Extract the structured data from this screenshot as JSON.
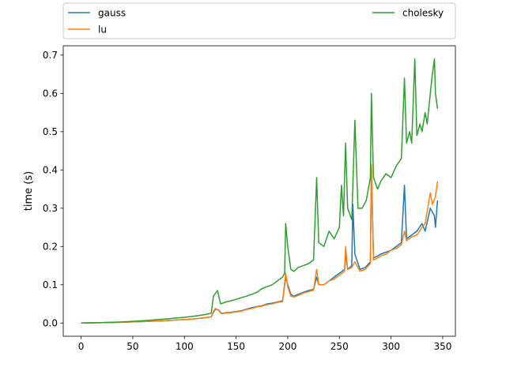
{
  "chart_data": {
    "type": "line",
    "title": "",
    "xlabel": "",
    "ylabel": "time (s)",
    "xlim": [
      -17.3,
      362.3
    ],
    "ylim": [
      -0.0345,
      0.7245
    ],
    "x_ticks": [
      0,
      50,
      100,
      150,
      200,
      250,
      300,
      350
    ],
    "y_ticks": [
      0.0,
      0.1,
      0.2,
      0.3,
      0.4,
      0.5,
      0.6,
      0.7
    ],
    "x_tick_labels": [
      "0",
      "50",
      "100",
      "150",
      "200",
      "250",
      "300",
      "350"
    ],
    "y_tick_labels": [
      "0.0",
      "0.1",
      "0.2",
      "0.3",
      "0.4",
      "0.5",
      "0.6",
      "0.7"
    ],
    "grid": false,
    "legend_position": "above plot, two columns",
    "series": [
      {
        "name": "gauss",
        "color": "#1f77b4",
        "points": [
          [
            0,
            0.0
          ],
          [
            20,
            0.001
          ],
          [
            40,
            0.002
          ],
          [
            60,
            0.004
          ],
          [
            80,
            0.006
          ],
          [
            100,
            0.009
          ],
          [
            110,
            0.011
          ],
          [
            120,
            0.014
          ],
          [
            126,
            0.016
          ],
          [
            128,
            0.028
          ],
          [
            130,
            0.036
          ],
          [
            133,
            0.034
          ],
          [
            136,
            0.025
          ],
          [
            140,
            0.027
          ],
          [
            145,
            0.028
          ],
          [
            150,
            0.03
          ],
          [
            155,
            0.032
          ],
          [
            160,
            0.036
          ],
          [
            165,
            0.04
          ],
          [
            170,
            0.043
          ],
          [
            175,
            0.045
          ],
          [
            180,
            0.05
          ],
          [
            185,
            0.052
          ],
          [
            190,
            0.055
          ],
          [
            195,
            0.058
          ],
          [
            198,
            0.12
          ],
          [
            200,
            0.1
          ],
          [
            203,
            0.075
          ],
          [
            206,
            0.07
          ],
          [
            210,
            0.075
          ],
          [
            215,
            0.08
          ],
          [
            220,
            0.085
          ],
          [
            225,
            0.088
          ],
          [
            228,
            0.12
          ],
          [
            230,
            0.1
          ],
          [
            235,
            0.1
          ],
          [
            240,
            0.11
          ],
          [
            245,
            0.12
          ],
          [
            250,
            0.13
          ],
          [
            255,
            0.14
          ],
          [
            256,
            0.18
          ],
          [
            258,
            0.14
          ],
          [
            262,
            0.15
          ],
          [
            263,
            0.31
          ],
          [
            265,
            0.18
          ],
          [
            270,
            0.14
          ],
          [
            275,
            0.145
          ],
          [
            280,
            0.16
          ],
          [
            281,
            0.41
          ],
          [
            283,
            0.17
          ],
          [
            287,
            0.175
          ],
          [
            290,
            0.18
          ],
          [
            295,
            0.185
          ],
          [
            300,
            0.19
          ],
          [
            305,
            0.2
          ],
          [
            310,
            0.21
          ],
          [
            313,
            0.36
          ],
          [
            315,
            0.22
          ],
          [
            320,
            0.23
          ],
          [
            325,
            0.24
          ],
          [
            330,
            0.26
          ],
          [
            333,
            0.24
          ],
          [
            338,
            0.3
          ],
          [
            342,
            0.28
          ],
          [
            343,
            0.25
          ],
          [
            345,
            0.32
          ]
        ]
      },
      {
        "name": "lu",
        "color": "#ff7f0e",
        "points": [
          [
            0,
            0.0
          ],
          [
            20,
            0.001
          ],
          [
            40,
            0.002
          ],
          [
            60,
            0.004
          ],
          [
            80,
            0.006
          ],
          [
            100,
            0.009
          ],
          [
            110,
            0.011
          ],
          [
            120,
            0.014
          ],
          [
            126,
            0.016
          ],
          [
            128,
            0.03
          ],
          [
            130,
            0.038
          ],
          [
            133,
            0.033
          ],
          [
            136,
            0.024
          ],
          [
            140,
            0.026
          ],
          [
            145,
            0.027
          ],
          [
            150,
            0.029
          ],
          [
            155,
            0.031
          ],
          [
            160,
            0.035
          ],
          [
            165,
            0.038
          ],
          [
            170,
            0.042
          ],
          [
            175,
            0.044
          ],
          [
            180,
            0.048
          ],
          [
            185,
            0.05
          ],
          [
            190,
            0.054
          ],
          [
            195,
            0.056
          ],
          [
            198,
            0.13
          ],
          [
            200,
            0.095
          ],
          [
            203,
            0.07
          ],
          [
            206,
            0.068
          ],
          [
            210,
            0.072
          ],
          [
            215,
            0.078
          ],
          [
            220,
            0.082
          ],
          [
            225,
            0.086
          ],
          [
            228,
            0.14
          ],
          [
            230,
            0.1
          ],
          [
            235,
            0.1
          ],
          [
            240,
            0.11
          ],
          [
            245,
            0.115
          ],
          [
            250,
            0.125
          ],
          [
            255,
            0.135
          ],
          [
            256,
            0.2
          ],
          [
            258,
            0.14
          ],
          [
            262,
            0.145
          ],
          [
            265,
            0.16
          ],
          [
            270,
            0.135
          ],
          [
            275,
            0.14
          ],
          [
            280,
            0.155
          ],
          [
            281,
            0.415
          ],
          [
            283,
            0.165
          ],
          [
            287,
            0.17
          ],
          [
            290,
            0.175
          ],
          [
            295,
            0.18
          ],
          [
            300,
            0.19
          ],
          [
            305,
            0.195
          ],
          [
            310,
            0.205
          ],
          [
            313,
            0.24
          ],
          [
            315,
            0.215
          ],
          [
            320,
            0.225
          ],
          [
            325,
            0.23
          ],
          [
            330,
            0.25
          ],
          [
            333,
            0.26
          ],
          [
            338,
            0.34
          ],
          [
            340,
            0.31
          ],
          [
            343,
            0.33
          ],
          [
            345,
            0.37
          ]
        ]
      },
      {
        "name": "cholesky",
        "color": "#2ca02c",
        "points": [
          [
            0,
            0.0
          ],
          [
            20,
            0.001
          ],
          [
            40,
            0.003
          ],
          [
            60,
            0.006
          ],
          [
            80,
            0.01
          ],
          [
            100,
            0.015
          ],
          [
            110,
            0.018
          ],
          [
            120,
            0.022
          ],
          [
            126,
            0.026
          ],
          [
            128,
            0.07
          ],
          [
            132,
            0.085
          ],
          [
            135,
            0.05
          ],
          [
            140,
            0.055
          ],
          [
            145,
            0.058
          ],
          [
            150,
            0.062
          ],
          [
            155,
            0.066
          ],
          [
            160,
            0.07
          ],
          [
            165,
            0.075
          ],
          [
            170,
            0.08
          ],
          [
            175,
            0.09
          ],
          [
            180,
            0.095
          ],
          [
            185,
            0.1
          ],
          [
            190,
            0.11
          ],
          [
            195,
            0.12
          ],
          [
            197,
            0.13
          ],
          [
            198,
            0.26
          ],
          [
            200,
            0.2
          ],
          [
            203,
            0.14
          ],
          [
            206,
            0.135
          ],
          [
            210,
            0.145
          ],
          [
            215,
            0.15
          ],
          [
            220,
            0.155
          ],
          [
            225,
            0.165
          ],
          [
            228,
            0.38
          ],
          [
            230,
            0.21
          ],
          [
            235,
            0.2
          ],
          [
            240,
            0.24
          ],
          [
            245,
            0.22
          ],
          [
            250,
            0.25
          ],
          [
            252,
            0.36
          ],
          [
            254,
            0.28
          ],
          [
            256,
            0.47
          ],
          [
            258,
            0.3
          ],
          [
            262,
            0.27
          ],
          [
            265,
            0.53
          ],
          [
            268,
            0.3
          ],
          [
            272,
            0.3
          ],
          [
            276,
            0.32
          ],
          [
            280,
            0.38
          ],
          [
            281,
            0.6
          ],
          [
            283,
            0.38
          ],
          [
            287,
            0.35
          ],
          [
            290,
            0.37
          ],
          [
            295,
            0.39
          ],
          [
            300,
            0.38
          ],
          [
            305,
            0.41
          ],
          [
            310,
            0.43
          ],
          [
            313,
            0.64
          ],
          [
            315,
            0.47
          ],
          [
            318,
            0.5
          ],
          [
            320,
            0.47
          ],
          [
            323,
            0.69
          ],
          [
            325,
            0.49
          ],
          [
            328,
            0.52
          ],
          [
            330,
            0.5
          ],
          [
            333,
            0.55
          ],
          [
            335,
            0.52
          ],
          [
            338,
            0.6
          ],
          [
            340,
            0.65
          ],
          [
            342,
            0.69
          ],
          [
            343,
            0.6
          ],
          [
            345,
            0.56
          ]
        ]
      }
    ]
  }
}
